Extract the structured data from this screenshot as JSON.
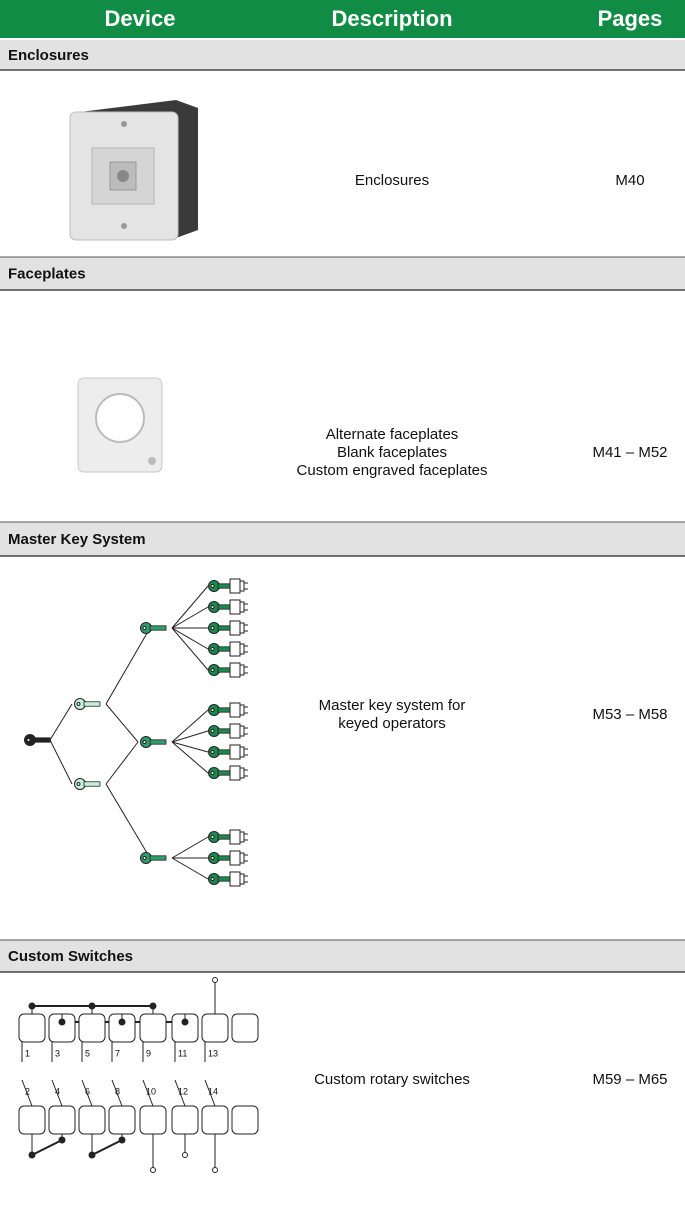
{
  "header": {
    "columns": [
      "Device",
      "Description",
      "Pages"
    ]
  },
  "sections": [
    {
      "title": "Enclosures",
      "description": [
        "Enclosures"
      ],
      "pages": "M40"
    },
    {
      "title": "Faceplates",
      "description": [
        "Alternate faceplates",
        "Blank faceplates",
        "Custom engraved faceplates"
      ],
      "pages": "M41 – M52"
    },
    {
      "title": "Master Key System",
      "description": [
        "Master key system for",
        "keyed operators"
      ],
      "pages": "M53 – M58"
    },
    {
      "title": "Custom Switches",
      "description": [
        "Custom rotary switches"
      ],
      "pages": "M59 – M65"
    }
  ],
  "switch_diagram": {
    "labels": [
      "1",
      "2",
      "3",
      "4",
      "5",
      "6",
      "7",
      "8",
      "9",
      "10",
      "11",
      "12",
      "13",
      "14"
    ]
  }
}
